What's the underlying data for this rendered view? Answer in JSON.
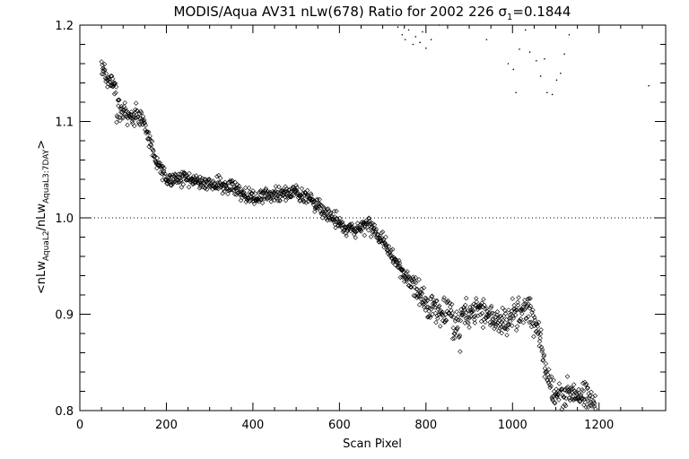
{
  "chart_data": {
    "type": "scatter",
    "title": "MODIS/Aqua AV31 nLw(678) Ratio for 2002 226 σ1=0.1844",
    "title_parts": {
      "main": "MODIS/Aqua AV31 nLw(678) Ratio for 2002 226 ",
      "sigma": "σ",
      "sigma_sub": "1",
      "sigma_value": "=0.1844"
    },
    "xlabel": "Scan Pixel",
    "ylabel": "<nLw_AquaL2/nLw_AquaL3:7DAY>",
    "ylabel_parts": {
      "open": "<nLw",
      "sub1": "AquaL2",
      "mid": "/nLw",
      "sub2": "AquaL3:7DAY",
      "close": ">"
    },
    "xlim": [
      0,
      1354
    ],
    "ylim": [
      0.8,
      1.2
    ],
    "x_ticks": [
      0,
      200,
      400,
      600,
      800,
      1000,
      1200
    ],
    "x_tick_labels": [
      "0",
      "200",
      "400",
      "600",
      "800",
      "1000",
      "1200"
    ],
    "y_ticks": [
      0.8,
      0.9,
      1.0,
      1.1,
      1.2
    ],
    "y_tick_labels": [
      "0.8",
      "0.9",
      "1.0",
      "1.1",
      "1.2"
    ],
    "reference_line": 1.0,
    "reference_line_style": "dotted",
    "marker": "diamond",
    "grid": false,
    "trend": [
      {
        "x": 50,
        "y": 1.155
      },
      {
        "x": 80,
        "y": 1.135
      },
      {
        "x": 110,
        "y": 1.105
      },
      {
        "x": 150,
        "y": 1.095
      },
      {
        "x": 175,
        "y": 1.06
      },
      {
        "x": 200,
        "y": 1.04
      },
      {
        "x": 250,
        "y": 1.04
      },
      {
        "x": 300,
        "y": 1.035
      },
      {
        "x": 350,
        "y": 1.033
      },
      {
        "x": 400,
        "y": 1.02
      },
      {
        "x": 450,
        "y": 1.025
      },
      {
        "x": 500,
        "y": 1.027
      },
      {
        "x": 550,
        "y": 1.015
      },
      {
        "x": 580,
        "y": 1.0
      },
      {
        "x": 620,
        "y": 0.987
      },
      {
        "x": 670,
        "y": 0.993
      },
      {
        "x": 700,
        "y": 0.975
      },
      {
        "x": 730,
        "y": 0.955
      },
      {
        "x": 760,
        "y": 0.935
      },
      {
        "x": 800,
        "y": 0.91
      },
      {
        "x": 840,
        "y": 0.905
      },
      {
        "x": 880,
        "y": 0.9
      },
      {
        "x": 920,
        "y": 0.905
      },
      {
        "x": 960,
        "y": 0.895
      },
      {
        "x": 1000,
        "y": 0.895
      },
      {
        "x": 1040,
        "y": 0.9
      },
      {
        "x": 1060,
        "y": 0.88
      },
      {
        "x": 1080,
        "y": 0.835
      },
      {
        "x": 1100,
        "y": 0.815
      },
      {
        "x": 1140,
        "y": 0.82
      },
      {
        "x": 1180,
        "y": 0.81
      },
      {
        "x": 1195,
        "y": 0.8
      }
    ],
    "bump_segments": [
      {
        "x0": 85,
        "x1": 100,
        "dy": -0.025
      },
      {
        "x0": 125,
        "x1": 150,
        "dy": 0.01
      },
      {
        "x0": 860,
        "x1": 880,
        "dy": -0.02
      },
      {
        "x0": 1000,
        "x1": 1040,
        "dy": 0.008
      }
    ],
    "scatter_amplitude": 0.008,
    "outliers": [
      {
        "x": 735,
        "y": 1.198
      },
      {
        "x": 745,
        "y": 1.19
      },
      {
        "x": 752,
        "y": 1.185
      },
      {
        "x": 760,
        "y": 1.195
      },
      {
        "x": 770,
        "y": 1.18
      },
      {
        "x": 776,
        "y": 1.188
      },
      {
        "x": 786,
        "y": 1.182
      },
      {
        "x": 792,
        "y": 1.193
      },
      {
        "x": 800,
        "y": 1.176
      },
      {
        "x": 812,
        "y": 1.185
      },
      {
        "x": 830,
        "y": 1.2
      },
      {
        "x": 940,
        "y": 1.185
      },
      {
        "x": 990,
        "y": 1.16
      },
      {
        "x": 1002,
        "y": 1.154
      },
      {
        "x": 1008,
        "y": 1.13
      },
      {
        "x": 1016,
        "y": 1.175
      },
      {
        "x": 1030,
        "y": 1.195
      },
      {
        "x": 1040,
        "y": 1.172
      },
      {
        "x": 1055,
        "y": 1.163
      },
      {
        "x": 1065,
        "y": 1.147
      },
      {
        "x": 1074,
        "y": 1.165
      },
      {
        "x": 1080,
        "y": 1.13
      },
      {
        "x": 1092,
        "y": 1.128
      },
      {
        "x": 1102,
        "y": 1.143
      },
      {
        "x": 1111,
        "y": 1.15
      },
      {
        "x": 1120,
        "y": 1.17
      },
      {
        "x": 1131,
        "y": 1.19
      },
      {
        "x": 1315,
        "y": 1.137
      }
    ]
  }
}
